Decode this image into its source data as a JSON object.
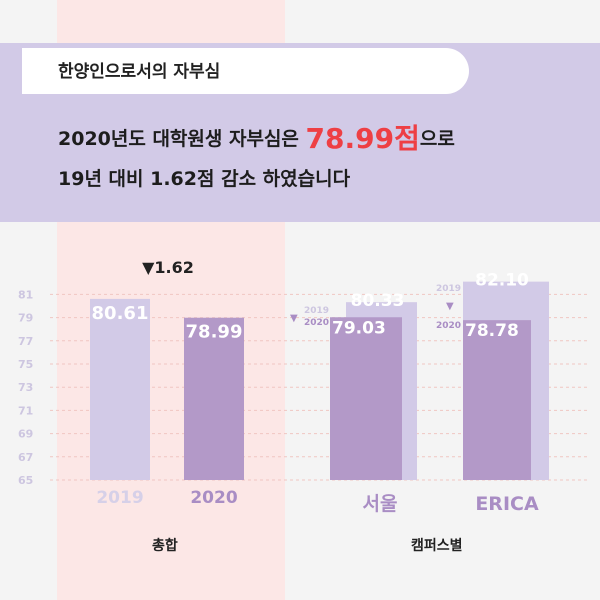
{
  "header": {
    "title": "한양인으로서의 자부심",
    "line1_prefix": "2020년도 대학원생 자부심은 ",
    "line1_highlight": "78.99점",
    "line1_suffix": "으로",
    "line2": "19년 대비 1.62점 감소 하였습니다"
  },
  "colors": {
    "highlight": "#ee3f44",
    "bar_2019": "#d2cae7",
    "bar_2020": "#b399c8",
    "banner": "#d2cae7"
  },
  "chart_data": {
    "type": "bar",
    "yaxis": {
      "ticks": [
        81,
        79,
        77,
        75,
        73,
        71,
        69,
        67,
        65
      ],
      "ylim": [
        65,
        82.5
      ]
    },
    "overall": {
      "label": "총합",
      "change": "▼1.62",
      "bars": [
        {
          "category": "2019",
          "value": 80.61,
          "label": "80.61"
        },
        {
          "category": "2020",
          "value": 78.99,
          "label": "78.99"
        }
      ]
    },
    "campus": {
      "label": "캠퍼스별",
      "series": [
        {
          "name": "2019",
          "values": [
            80.33,
            82.1
          ]
        },
        {
          "name": "2020",
          "values": [
            79.03,
            78.78
          ]
        }
      ],
      "categories": [
        "서울",
        "ERICA"
      ],
      "value_labels": {
        "2019": [
          "80.33",
          "82.10"
        ],
        "2020": [
          "79.03",
          "78.78"
        ]
      },
      "marker": "▼"
    }
  }
}
